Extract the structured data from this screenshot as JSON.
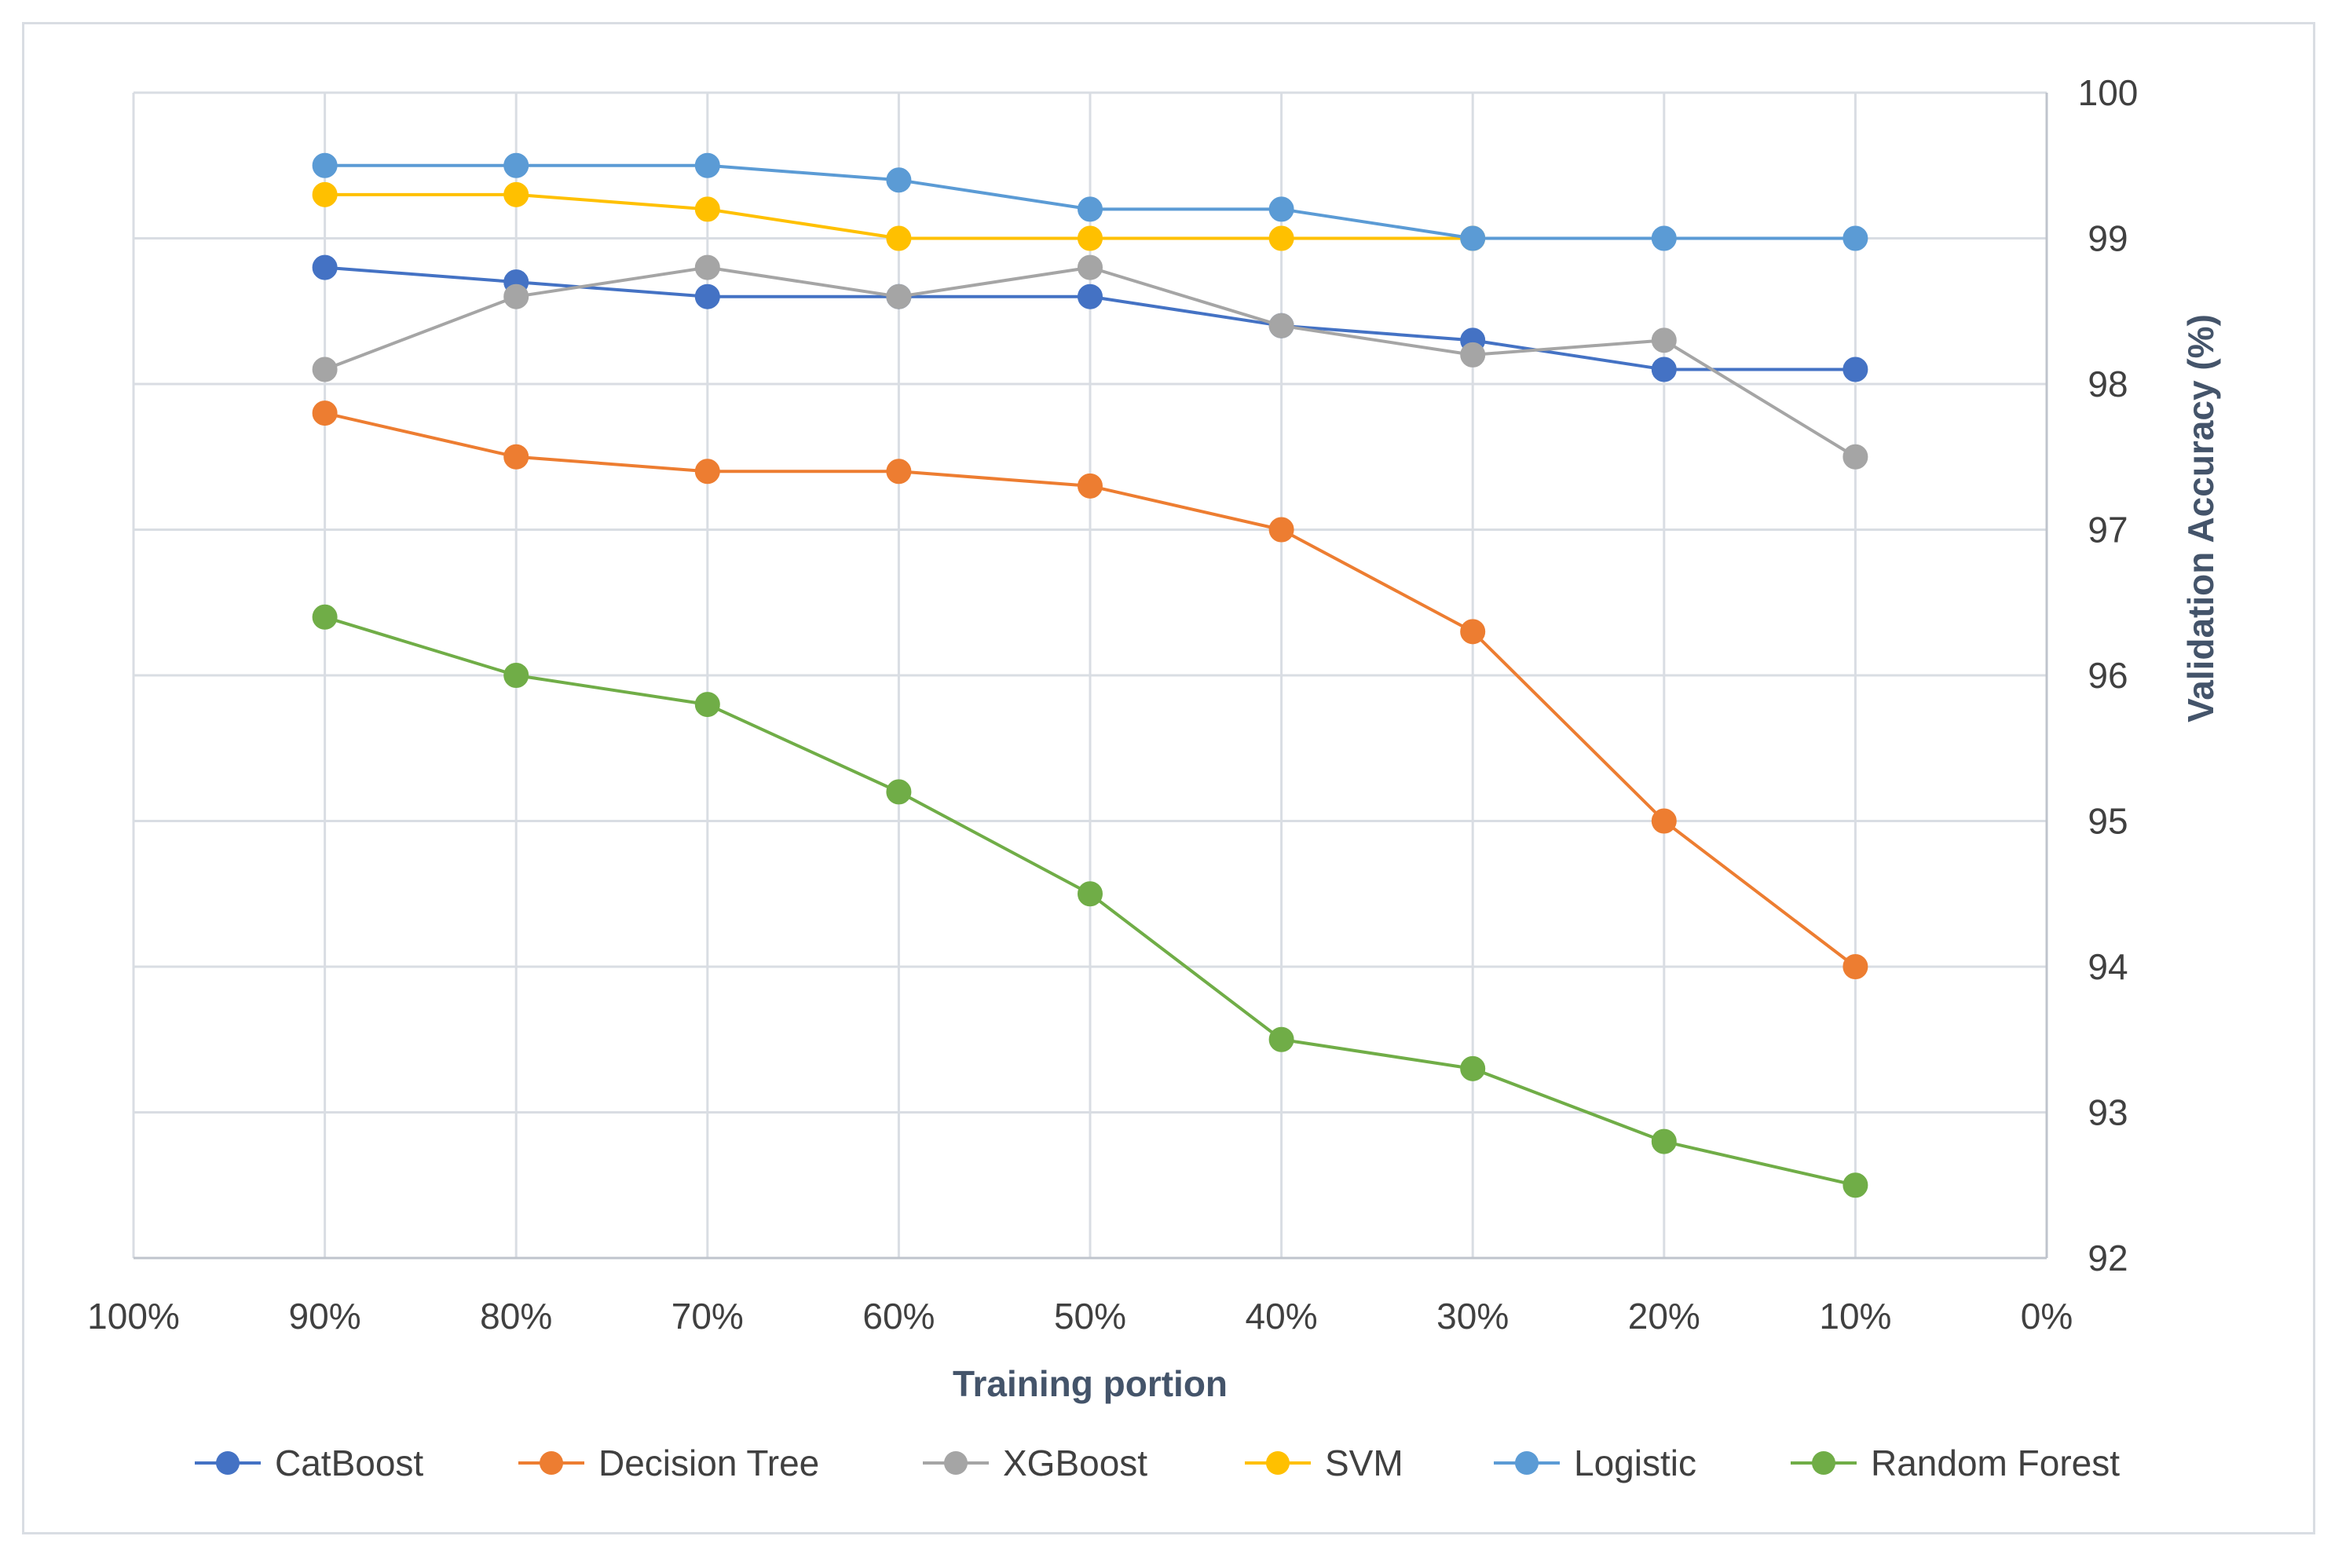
{
  "chart_data": {
    "type": "line",
    "title": "",
    "xlabel": "Training portion",
    "ylabel": "Validation Accuracy (%)",
    "x_ticks": [
      "100%",
      "90%",
      "80%",
      "70%",
      "60%",
      "50%",
      "40%",
      "30%",
      "20%",
      "10%",
      "0%"
    ],
    "categories": [
      "90%",
      "80%",
      "70%",
      "60%",
      "50%",
      "40%",
      "30%",
      "20%",
      "10%"
    ],
    "y_ticks": [
      "92",
      "93",
      "94",
      "95",
      "96",
      "97",
      "98",
      "99",
      "100"
    ],
    "ylim": [
      92,
      100
    ],
    "grid": true,
    "y_axis_side": "right",
    "legend_position": "bottom",
    "series": [
      {
        "name": "CatBoost",
        "color": "#4472c4",
        "values": [
          98.8,
          98.7,
          98.6,
          98.6,
          98.6,
          98.4,
          98.3,
          98.1,
          98.1
        ]
      },
      {
        "name": "Decision Tree",
        "color": "#ed7d31",
        "values": [
          97.8,
          97.5,
          97.4,
          97.4,
          97.3,
          97.0,
          96.3,
          95.0,
          94.0
        ]
      },
      {
        "name": "XGBoost",
        "color": "#a5a5a5",
        "values": [
          98.1,
          98.6,
          98.8,
          98.6,
          98.8,
          98.4,
          98.2,
          98.3,
          97.5
        ]
      },
      {
        "name": "SVM",
        "color": "#ffc000",
        "values": [
          99.3,
          99.3,
          99.2,
          99.0,
          99.0,
          99.0,
          99.0,
          null,
          null
        ]
      },
      {
        "name": "Logistic",
        "color": "#5b9bd5",
        "values": [
          99.5,
          99.5,
          99.5,
          99.4,
          99.2,
          99.2,
          99.0,
          99.0,
          99.0
        ]
      },
      {
        "name": "Random Forest",
        "color": "#70ad47",
        "values": [
          96.4,
          96.0,
          95.8,
          95.2,
          94.5,
          93.5,
          93.3,
          92.8,
          92.5
        ]
      }
    ]
  }
}
